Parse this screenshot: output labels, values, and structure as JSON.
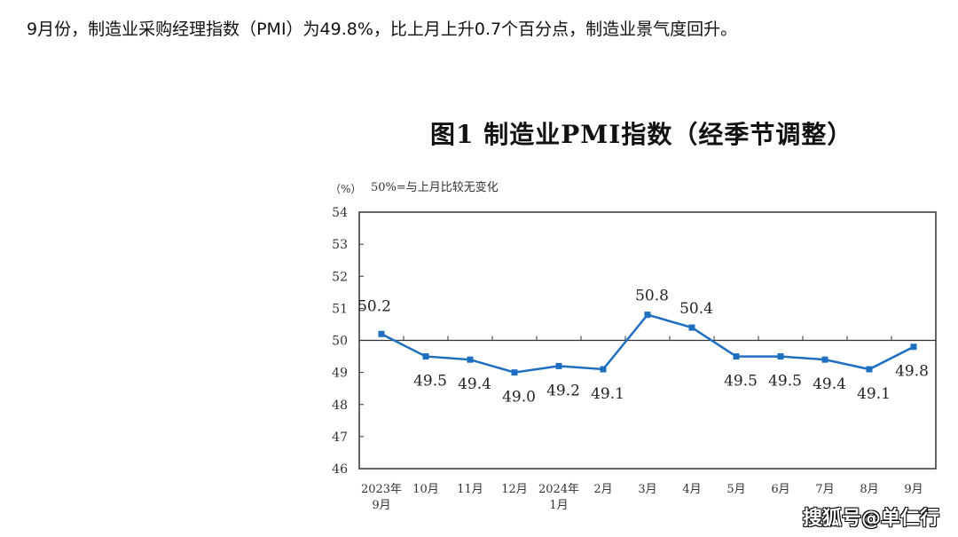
{
  "headline": "9月份，制造业采购经理指数（PMI）为49.8%，比上月上升0.7个百分点，制造业景气度回升。",
  "watermark": "搜狐号@单仁行",
  "chart_data": {
    "type": "line",
    "title": "图1  制造业PMI指数（经季节调整）",
    "ylabel": "（%）",
    "annotation": "50%=与上月比较无变化",
    "categories": [
      [
        "2023年",
        "9月"
      ],
      [
        "10月"
      ],
      [
        "11月"
      ],
      [
        "12月"
      ],
      [
        "2024年",
        "1月"
      ],
      [
        "2月"
      ],
      [
        "3月"
      ],
      [
        "4月"
      ],
      [
        "5月"
      ],
      [
        "6月"
      ],
      [
        "7月"
      ],
      [
        "8月"
      ],
      [
        "9月"
      ]
    ],
    "values": [
      50.2,
      49.5,
      49.4,
      49.0,
      49.2,
      49.1,
      50.8,
      50.4,
      49.5,
      49.5,
      49.4,
      49.1,
      49.8
    ],
    "data_labels": [
      "50.2",
      "49.5",
      "49.4",
      "49.0",
      "49.2",
      "49.1",
      "50.8",
      "50.4",
      "49.5",
      "49.5",
      "49.4",
      "49.1",
      "49.8"
    ],
    "ylim": [
      46,
      54
    ],
    "yticks": [
      46,
      47,
      48,
      49,
      50,
      51,
      52,
      53,
      54
    ],
    "reference_line": 50,
    "grid": false,
    "line_color": "#1f6fc0"
  }
}
